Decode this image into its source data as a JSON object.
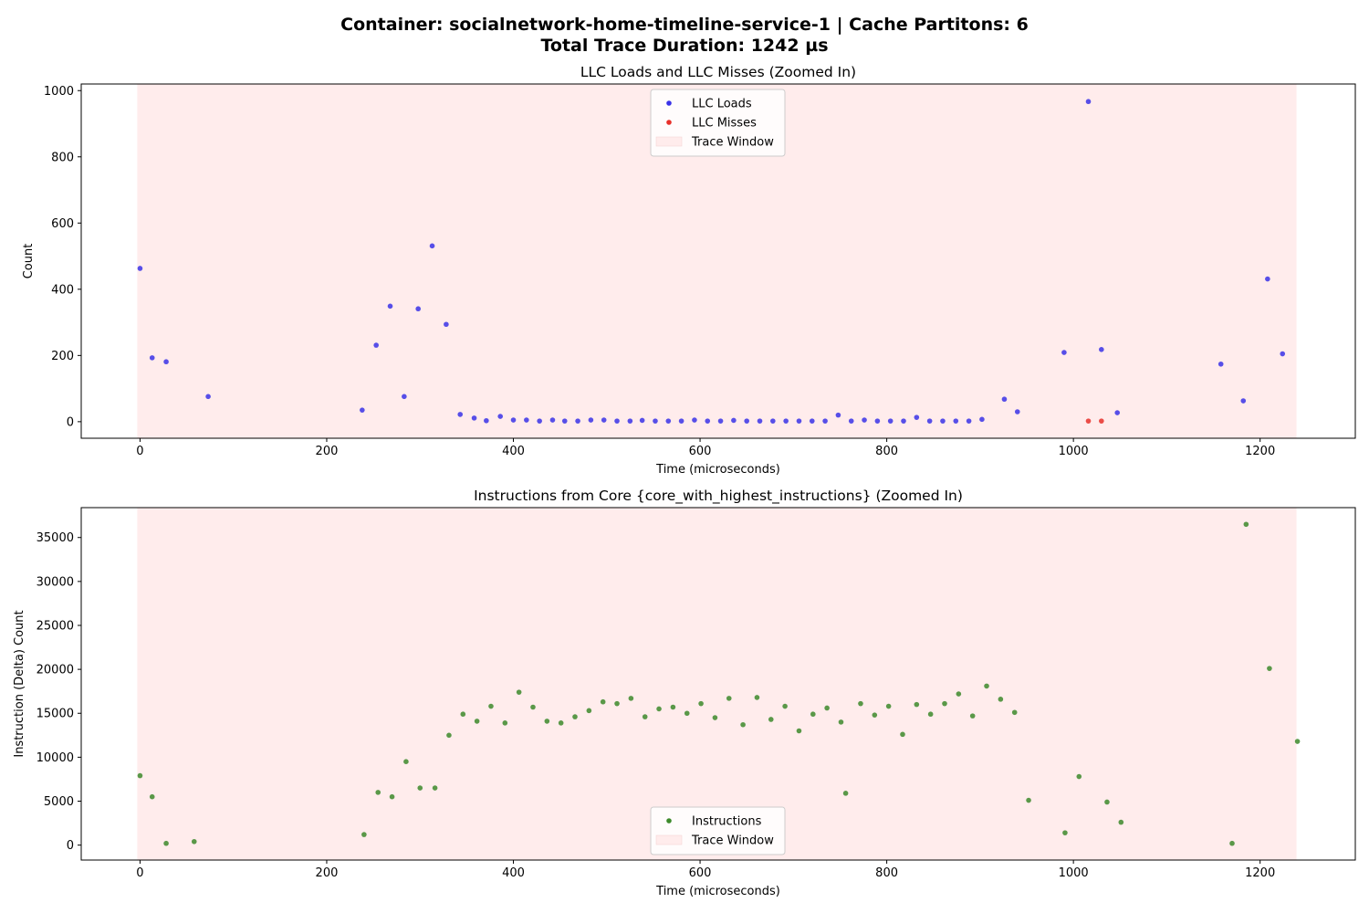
{
  "figure": {
    "title_line1": "Container: socialnetwork-home-timeline-service-1 | Cache Partitons: 6",
    "title_line2": "Total Trace Duration: 1242 µs"
  },
  "chart_data": [
    {
      "type": "scatter",
      "title": "LLC Loads and LLC Misses (Zoomed In)",
      "xlabel": "Time (microseconds)",
      "ylabel": "Count",
      "xlim": [
        -63,
        1302
      ],
      "ylim": [
        -50,
        1020
      ],
      "xticks": [
        0,
        200,
        400,
        600,
        800,
        1000,
        1200
      ],
      "yticks": [
        0,
        200,
        400,
        600,
        800,
        1000
      ],
      "trace_window": [
        -3,
        1239
      ],
      "legend_position": "upper center",
      "legend": [
        "LLC Loads",
        "LLC Misses",
        "Trace Window"
      ],
      "series": [
        {
          "name": "LLC Loads",
          "color": "#3a32e8",
          "points": [
            [
              0,
              463
            ],
            [
              13,
              193
            ],
            [
              28,
              181
            ],
            [
              73,
              76
            ],
            [
              238,
              35
            ],
            [
              253,
              231
            ],
            [
              268,
              349
            ],
            [
              283,
              76
            ],
            [
              298,
              341
            ],
            [
              313,
              531
            ],
            [
              328,
              294
            ],
            [
              343,
              22
            ],
            [
              358,
              11
            ],
            [
              371,
              3
            ],
            [
              386,
              16
            ],
            [
              400,
              5
            ],
            [
              414,
              5
            ],
            [
              428,
              2
            ],
            [
              442,
              5
            ],
            [
              455,
              2
            ],
            [
              469,
              2
            ],
            [
              483,
              5
            ],
            [
              497,
              5
            ],
            [
              511,
              2
            ],
            [
              525,
              2
            ],
            [
              538,
              4
            ],
            [
              552,
              2
            ],
            [
              566,
              2
            ],
            [
              580,
              2
            ],
            [
              594,
              5
            ],
            [
              608,
              2
            ],
            [
              622,
              2
            ],
            [
              636,
              4
            ],
            [
              650,
              2
            ],
            [
              664,
              2
            ],
            [
              678,
              2
            ],
            [
              692,
              2
            ],
            [
              706,
              2
            ],
            [
              720,
              2
            ],
            [
              734,
              2
            ],
            [
              748,
              20
            ],
            [
              762,
              2
            ],
            [
              776,
              5
            ],
            [
              790,
              2
            ],
            [
              804,
              2
            ],
            [
              818,
              2
            ],
            [
              832,
              13
            ],
            [
              846,
              2
            ],
            [
              860,
              2
            ],
            [
              874,
              2
            ],
            [
              888,
              2
            ],
            [
              902,
              7
            ],
            [
              926,
              68
            ],
            [
              940,
              30
            ],
            [
              990,
              209
            ],
            [
              1016,
              967
            ],
            [
              1030,
              218
            ],
            [
              1047,
              27
            ],
            [
              1158,
              174
            ],
            [
              1182,
              63
            ],
            [
              1208,
              431
            ],
            [
              1224,
              205
            ]
          ]
        },
        {
          "name": "LLC Misses",
          "color": "#e8302a",
          "points": [
            [
              1016,
              2
            ],
            [
              1030,
              2
            ]
          ]
        }
      ]
    },
    {
      "type": "scatter",
      "title": "Instructions from Core {core_with_highest_instructions} (Zoomed In)",
      "xlabel": "Time (microseconds)",
      "ylabel": "Instruction (Delta) Count",
      "xlim": [
        -63,
        1302
      ],
      "ylim": [
        -1700,
        38400
      ],
      "xticks": [
        0,
        200,
        400,
        600,
        800,
        1000,
        1200
      ],
      "yticks": [
        0,
        5000,
        10000,
        15000,
        20000,
        25000,
        30000,
        35000
      ],
      "trace_window": [
        -3,
        1239
      ],
      "legend_position": "lower center",
      "legend": [
        "Instructions",
        "Trace Window"
      ],
      "series": [
        {
          "name": "Instructions",
          "color": "#3d8a2b",
          "points": [
            [
              0,
              7900
            ],
            [
              13,
              5500
            ],
            [
              28,
              200
            ],
            [
              58,
              400
            ],
            [
              240,
              1200
            ],
            [
              255,
              6000
            ],
            [
              270,
              5500
            ],
            [
              285,
              9500
            ],
            [
              300,
              6500
            ],
            [
              316,
              6500
            ],
            [
              331,
              12500
            ],
            [
              346,
              14900
            ],
            [
              361,
              14100
            ],
            [
              376,
              15800
            ],
            [
              391,
              13900
            ],
            [
              406,
              17400
            ],
            [
              421,
              15700
            ],
            [
              436,
              14100
            ],
            [
              451,
              13900
            ],
            [
              466,
              14600
            ],
            [
              481,
              15300
            ],
            [
              496,
              16300
            ],
            [
              511,
              16100
            ],
            [
              526,
              16700
            ],
            [
              541,
              14600
            ],
            [
              556,
              15500
            ],
            [
              571,
              15700
            ],
            [
              586,
              15000
            ],
            [
              601,
              16100
            ],
            [
              616,
              14500
            ],
            [
              631,
              16700
            ],
            [
              646,
              13700
            ],
            [
              661,
              16800
            ],
            [
              676,
              14300
            ],
            [
              691,
              15800
            ],
            [
              706,
              13000
            ],
            [
              721,
              14900
            ],
            [
              736,
              15600
            ],
            [
              751,
              14000
            ],
            [
              756,
              5900
            ],
            [
              772,
              16100
            ],
            [
              787,
              14800
            ],
            [
              802,
              15800
            ],
            [
              817,
              12600
            ],
            [
              832,
              16000
            ],
            [
              847,
              14900
            ],
            [
              862,
              16100
            ],
            [
              877,
              17200
            ],
            [
              892,
              14700
            ],
            [
              907,
              18100
            ],
            [
              922,
              16600
            ],
            [
              937,
              15100
            ],
            [
              952,
              5100
            ],
            [
              991,
              1400
            ],
            [
              1006,
              7800
            ],
            [
              1036,
              4900
            ],
            [
              1051,
              2600
            ],
            [
              1170,
              200
            ],
            [
              1185,
              36500
            ],
            [
              1210,
              20100
            ],
            [
              1240,
              11800
            ]
          ]
        }
      ]
    }
  ],
  "colors": {
    "trace_window_fill": "#ffecec",
    "axes_edge": "#000000"
  }
}
